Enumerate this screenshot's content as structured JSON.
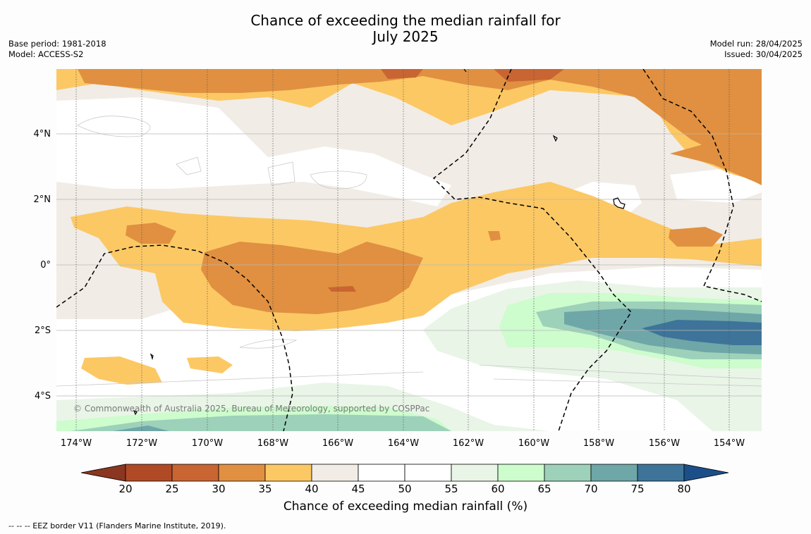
{
  "title_line1": "Chance of exceeding the median rainfall for",
  "title_line2": "July 2025",
  "base_period": "Base period: 1981-2018",
  "model": "Model: ACCESS-S2",
  "model_run": "Model run: 28/04/2025",
  "issued": "Issued: 30/04/2025",
  "lat_labels": [
    "4°N",
    "2°N",
    "0°",
    "2°S",
    "4°S"
  ],
  "lon_labels": [
    "174°W",
    "172°W",
    "170°W",
    "168°W",
    "166°W",
    "164°W",
    "162°W",
    "160°W",
    "158°W",
    "156°W",
    "154°W"
  ],
  "copyright": "© Commonwealth of Australia 2025, Bureau of Meteorology, supported by COSPPac",
  "colorbar": {
    "ticks": [
      "20",
      "25",
      "30",
      "35",
      "40",
      "45",
      "50",
      "55",
      "60",
      "65",
      "70",
      "75",
      "80"
    ],
    "colors": [
      "#b04a26",
      "#c96532",
      "#e09040",
      "#fcc864",
      "#f1ece6",
      "#ffffff",
      "#ffffff",
      "#e9f5e7",
      "#cdfccd",
      "#9dd1ba",
      "#6fa6a8",
      "#3e7499"
    ],
    "under_color": "#8b3621",
    "over_color": "#1b4f8a",
    "title": "Chance of exceeding median rainfall (%)"
  },
  "footnote": "--  --  -- EEZ border V11 (Flanders Marine Institute, 2019)."
}
